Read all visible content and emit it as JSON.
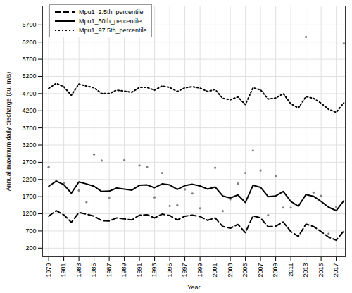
{
  "chart_data": {
    "type": "line",
    "x_label": "Year",
    "y_label": "Annual maximum daily discharge (cu. m/s)",
    "x": [
      1979,
      1980,
      1981,
      1982,
      1983,
      1984,
      1985,
      1986,
      1987,
      1988,
      1989,
      1990,
      1991,
      1992,
      1993,
      1994,
      1995,
      1996,
      1997,
      1998,
      1999,
      2000,
      2001,
      2002,
      2003,
      2004,
      2005,
      2006,
      2007,
      2008,
      2009,
      2010,
      2011,
      2012,
      2013,
      2014,
      2015,
      2016,
      2017,
      2018
    ],
    "series": [
      {
        "name": "Mpu1_2.5th_percentile",
        "color": "#000000",
        "line_style": "dashed",
        "values": [
          1130,
          1290,
          1170,
          950,
          1240,
          1190,
          1130,
          1000,
          990,
          1080,
          1050,
          1020,
          1160,
          1170,
          1080,
          1190,
          1150,
          1020,
          1130,
          1160,
          1120,
          1010,
          1080,
          830,
          780,
          890,
          650,
          1140,
          1080,
          820,
          840,
          960,
          680,
          540,
          900,
          830,
          680,
          520,
          430,
          700
        ]
      },
      {
        "name": "Mpu1_50th_percentile",
        "color": "#000000",
        "line_style": "solid",
        "values": [
          2000,
          2150,
          2050,
          1800,
          2130,
          2070,
          2000,
          1850,
          1860,
          1950,
          1920,
          1890,
          2030,
          2040,
          1960,
          2070,
          2040,
          1910,
          2020,
          2060,
          2010,
          1920,
          1980,
          1720,
          1660,
          1750,
          1530,
          2030,
          1970,
          1700,
          1720,
          1850,
          1560,
          1420,
          1760,
          1710,
          1560,
          1390,
          1290,
          1580
        ]
      },
      {
        "name": "Mpu1_97.5th_percentile",
        "color": "#000000",
        "line_style": "dotted",
        "values": [
          4850,
          5000,
          4900,
          4650,
          4980,
          4920,
          4870,
          4700,
          4700,
          4800,
          4770,
          4740,
          4880,
          4880,
          4800,
          4920,
          4880,
          4760,
          4870,
          4900,
          4860,
          4760,
          4820,
          4560,
          4520,
          4600,
          4380,
          4870,
          4810,
          4540,
          4570,
          4700,
          4400,
          4280,
          4610,
          4560,
          4420,
          4240,
          4150,
          4430
        ]
      }
    ],
    "observed": {
      "type": "scatter",
      "color": "#808080",
      "marker": "circle",
      "values": [
        2560,
        2170,
        2100,
        null,
        1880,
        1540,
        2930,
        2750,
        1670,
        null,
        2760,
        null,
        2610,
        2560,
        1680,
        2390,
        1430,
        1450,
        1910,
        1790,
        1360,
        null,
        2540,
        1280,
        1620,
        2080,
        2390,
        3040,
        2460,
        1160,
        2300,
        1380,
        1380,
        null,
        6350,
        1820,
        1720,
        620,
        1400,
        6160
      ]
    },
    "xlim": [
      1978.2,
      2018.2
    ],
    "xticks": [
      1979,
      1981,
      1983,
      1985,
      1987,
      1989,
      1991,
      1993,
      1995,
      1997,
      1999,
      2001,
      2003,
      2005,
      2007,
      2009,
      2011,
      2013,
      2015,
      2017
    ],
    "ylim": [
      -50,
      7250
    ],
    "yticks": [
      200,
      700,
      1200,
      1700,
      2200,
      2700,
      3200,
      3700,
      4200,
      4700,
      5200,
      5700,
      6200,
      6700
    ],
    "grid": true,
    "legend": "top-left"
  }
}
